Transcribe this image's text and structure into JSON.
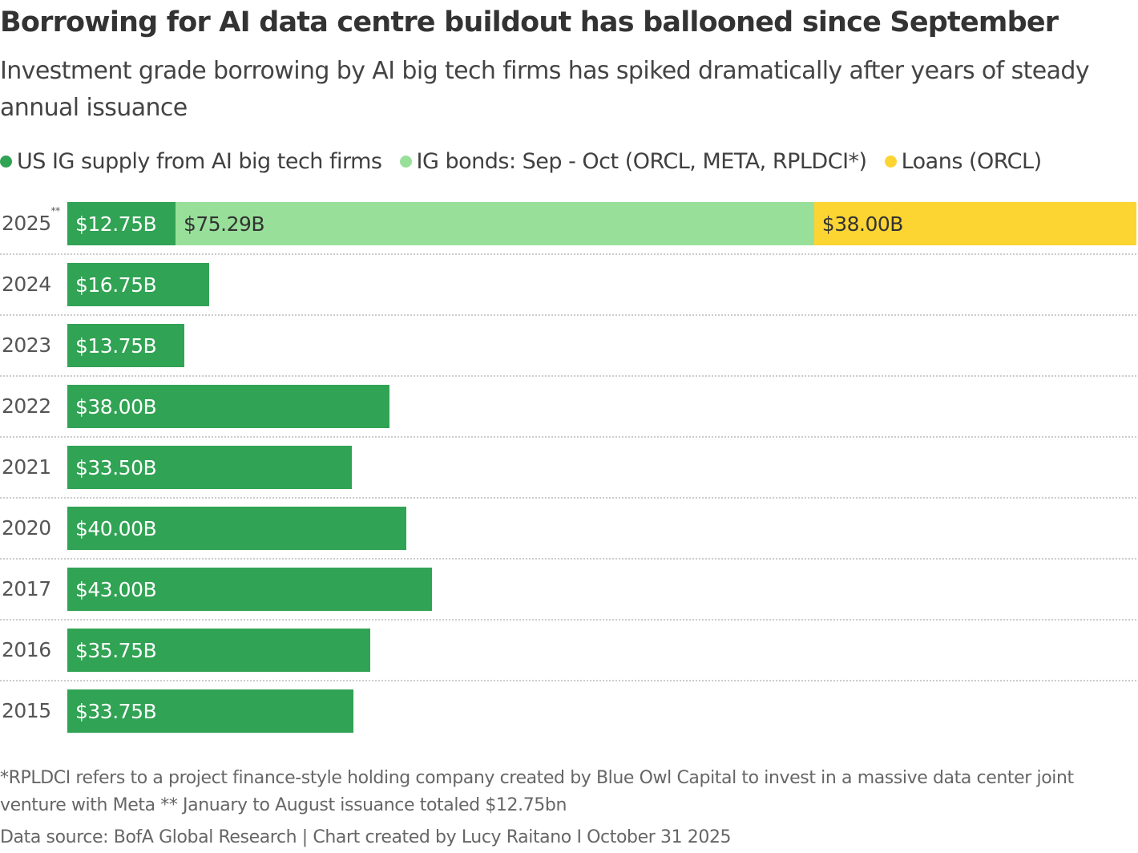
{
  "chart_data": {
    "type": "bar",
    "orientation": "horizontal",
    "stacked": true,
    "title": "Borrowing for AI data centre buildout has ballooned since September",
    "subtitle": "Investment grade borrowing by AI big tech firms has spiked dramatically after years of steady annual issuance",
    "categories": [
      "2025",
      "2024",
      "2023",
      "2022",
      "2021",
      "2020",
      "2017",
      "2016",
      "2015"
    ],
    "category_marks": {
      "2025": "**"
    },
    "series": [
      {
        "name": "US IG supply from AI big tech firms",
        "color": "#31a354",
        "label_color": "#ffffff",
        "values": [
          12.75,
          16.75,
          13.75,
          38.0,
          33.5,
          40.0,
          43.0,
          35.75,
          33.75
        ]
      },
      {
        "name": "IG bonds: Sep - Oct (ORCL, META, RPLDCI*)",
        "color": "#98e099",
        "label_color": "#333333",
        "values": [
          75.29,
          null,
          null,
          null,
          null,
          null,
          null,
          null,
          null
        ]
      },
      {
        "name": "Loans (ORCL)",
        "color": "#fdd533",
        "label_color": "#333333",
        "values": [
          38.0,
          null,
          null,
          null,
          null,
          null,
          null,
          null,
          null
        ]
      }
    ],
    "value_format": "$#.##B",
    "legend_position": "top-left",
    "grid": false
  },
  "footnote": "*RPLDCI refers to a project finance-style holding company created by Blue Owl Capital to invest in a massive data center joint venture with Meta ** January to August issuance totaled $12.75bn",
  "source": "Data source: BofA Global Research | Chart created by Lucy Raitano I October 31 2025"
}
